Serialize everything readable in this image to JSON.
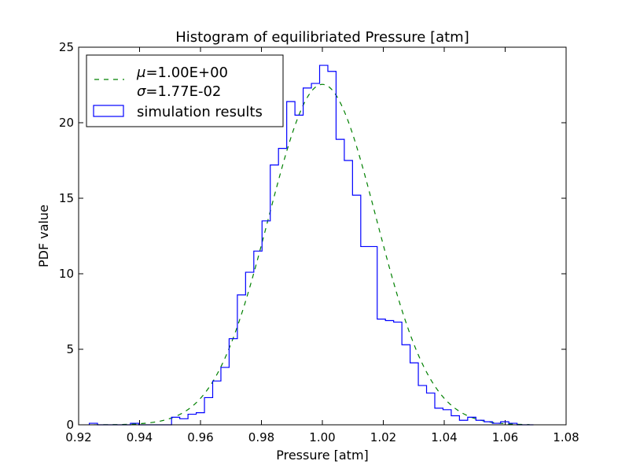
{
  "chart_data": {
    "type": "histogram",
    "title": "Histogram of equilibriated Pressure [atm]",
    "xlabel": "Pressure [atm]",
    "ylabel": "PDF value",
    "xlim": [
      0.92,
      1.08
    ],
    "ylim": [
      0,
      25
    ],
    "xticks": [
      "0.92",
      "0.94",
      "0.96",
      "0.98",
      "1.00",
      "1.02",
      "1.04",
      "1.06",
      "1.08"
    ],
    "xtick_values": [
      0.92,
      0.94,
      0.96,
      0.98,
      1.0,
      1.02,
      1.04,
      1.06,
      1.08
    ],
    "yticks": [
      "0",
      "5",
      "10",
      "15",
      "20",
      "25"
    ],
    "ytick_values": [
      0,
      5,
      10,
      15,
      20,
      25
    ],
    "grid": false,
    "legend_position": "top-left",
    "fit": {
      "type": "normal-pdf",
      "mu": 1.0,
      "sigma": 0.0177,
      "color": "#008000",
      "style": "dashed",
      "mu_symbol": "μ",
      "sigma_symbol": "σ",
      "mu_text": "=1.00E+00",
      "sigma_text": "=1.77E-02"
    },
    "series": [
      {
        "name": "simulation results",
        "kind": "step-histogram",
        "color": "#0000ff",
        "bin_edges": [
          0.9235,
          0.9262,
          0.9289,
          0.9316,
          0.9343,
          0.937,
          0.9397,
          0.9424,
          0.9451,
          0.9478,
          0.9505,
          0.9532,
          0.9559,
          0.9586,
          0.9613,
          0.964,
          0.9667,
          0.9694,
          0.9721,
          0.9748,
          0.9775,
          0.9802,
          0.9829,
          0.9856,
          0.9883,
          0.991,
          0.9937,
          0.9964,
          0.9991,
          1.0018,
          1.0045,
          1.0072,
          1.0099,
          1.0126,
          1.0153,
          1.018,
          1.0207,
          1.0234,
          1.0261,
          1.0288,
          1.0315,
          1.0342,
          1.0369,
          1.0396,
          1.0423,
          1.045,
          1.0477,
          1.0504,
          1.0531,
          1.0558,
          1.0585,
          1.0612,
          1.0639,
          1.0666,
          1.0693
        ],
        "values": [
          0.1,
          0,
          0,
          0,
          0,
          0.1,
          0,
          0,
          0,
          0,
          0.5,
          0.4,
          0.7,
          0.8,
          1.8,
          2.9,
          3.8,
          5.7,
          8.6,
          10.1,
          11.5,
          13.5,
          17.2,
          18.3,
          21.4,
          20.5,
          22.3,
          22.6,
          23.8,
          23.4,
          18.9,
          17.5,
          15.2,
          11.8,
          11.8,
          7.0,
          6.9,
          6.8,
          5.3,
          4.1,
          2.6,
          2.1,
          1.1,
          1.0,
          0.6,
          0.3,
          0.5,
          0.3,
          0.2,
          0.1,
          0.2,
          0.1,
          0,
          0
        ]
      }
    ]
  }
}
